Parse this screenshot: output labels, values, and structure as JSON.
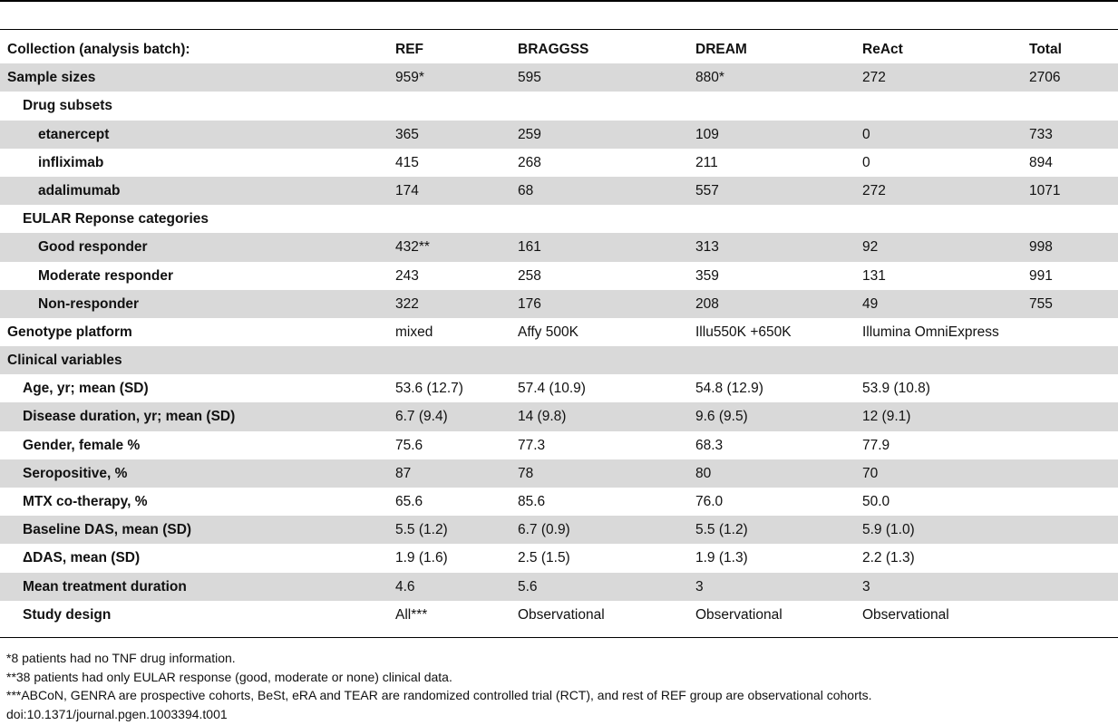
{
  "columns": [
    "Collection (analysis batch):",
    "REF",
    "BRAGGSS",
    "DREAM",
    "ReAct",
    "Total"
  ],
  "rows": [
    {
      "indent": 0,
      "shade": true,
      "cells": [
        "Sample sizes",
        "959*",
        "595",
        "880*",
        "272",
        "2706"
      ]
    },
    {
      "indent": 1,
      "shade": false,
      "cells": [
        "Drug subsets",
        "",
        "",
        "",
        "",
        ""
      ]
    },
    {
      "indent": 2,
      "shade": true,
      "cells": [
        "etanercept",
        "365",
        "259",
        "109",
        "0",
        "733"
      ]
    },
    {
      "indent": 2,
      "shade": false,
      "cells": [
        "infliximab",
        "415",
        "268",
        "211",
        "0",
        "894"
      ]
    },
    {
      "indent": 2,
      "shade": true,
      "cells": [
        "adalimumab",
        "174",
        "68",
        "557",
        "272",
        "1071"
      ]
    },
    {
      "indent": 1,
      "shade": false,
      "cells": [
        "EULAR Reponse categories",
        "",
        "",
        "",
        "",
        ""
      ]
    },
    {
      "indent": 2,
      "shade": true,
      "cells": [
        "Good responder",
        "432**",
        "161",
        "313",
        "92",
        "998"
      ]
    },
    {
      "indent": 2,
      "shade": false,
      "cells": [
        "Moderate responder",
        "243",
        "258",
        "359",
        "131",
        "991"
      ]
    },
    {
      "indent": 2,
      "shade": true,
      "cells": [
        "Non-responder",
        "322",
        "176",
        "208",
        "49",
        "755"
      ]
    },
    {
      "indent": 0,
      "shade": false,
      "cells": [
        "Genotype platform",
        "mixed",
        "Affy 500K",
        "Illu550K +650K",
        "Illumina OmniExpress",
        ""
      ]
    },
    {
      "indent": 0,
      "shade": true,
      "cells": [
        "Clinical variables",
        "",
        "",
        "",
        "",
        ""
      ]
    },
    {
      "indent": 1,
      "shade": false,
      "cells": [
        "Age, yr; mean (SD)",
        "53.6 (12.7)",
        "57.4 (10.9)",
        "54.8 (12.9)",
        "53.9 (10.8)",
        ""
      ]
    },
    {
      "indent": 1,
      "shade": true,
      "cells": [
        "Disease duration, yr; mean (SD)",
        "6.7 (9.4)",
        "14 (9.8)",
        "9.6 (9.5)",
        "12 (9.1)",
        ""
      ]
    },
    {
      "indent": 1,
      "shade": false,
      "cells": [
        "Gender, female %",
        "75.6",
        "77.3",
        "68.3",
        "77.9",
        ""
      ]
    },
    {
      "indent": 1,
      "shade": true,
      "cells": [
        "Seropositive, %",
        "87",
        "78",
        "80",
        "70",
        ""
      ]
    },
    {
      "indent": 1,
      "shade": false,
      "cells": [
        "MTX co-therapy, %",
        "65.6",
        "85.6",
        "76.0",
        "50.0",
        ""
      ]
    },
    {
      "indent": 1,
      "shade": true,
      "cells": [
        "Baseline DAS, mean (SD)",
        "5.5 (1.2)",
        "6.7 (0.9)",
        "5.5 (1.2)",
        "5.9 (1.0)",
        ""
      ]
    },
    {
      "indent": 1,
      "shade": false,
      "cells": [
        "ΔDAS, mean (SD)",
        "1.9 (1.6)",
        "2.5 (1.5)",
        "1.9 (1.3)",
        "2.2 (1.3)",
        ""
      ]
    },
    {
      "indent": 1,
      "shade": true,
      "cells": [
        "Mean treatment duration",
        "4.6",
        "5.6",
        "3",
        "3",
        ""
      ]
    },
    {
      "indent": 1,
      "shade": false,
      "cells": [
        "Study design",
        "All***",
        "Observational",
        "Observational",
        "Observational",
        ""
      ]
    }
  ],
  "footnotes": [
    "*8 patients had no TNF drug information.",
    "**38 patients had only EULAR response (good, moderate or none) clinical data.",
    "***ABCoN, GENRA are prospective cohorts, BeSt, eRA and TEAR are randomized controlled trial (RCT), and rest of REF group are observational cohorts.",
    "doi:10.1371/journal.pgen.1003394.t001"
  ]
}
